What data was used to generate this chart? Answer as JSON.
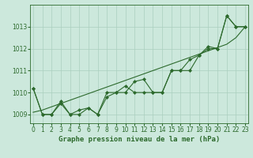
{
  "xlabel": "Graphe pression niveau de la mer (hPa)",
  "x": [
    0,
    1,
    2,
    3,
    4,
    5,
    6,
    7,
    8,
    9,
    10,
    11,
    12,
    13,
    14,
    15,
    16,
    17,
    18,
    19,
    20,
    21,
    22,
    23
  ],
  "line1": [
    1010.2,
    1009.0,
    1009.0,
    1009.6,
    1009.0,
    1009.0,
    1009.3,
    1009.0,
    1009.8,
    1010.0,
    1010.0,
    1010.5,
    1010.6,
    1010.0,
    1010.0,
    1011.0,
    1011.0,
    1011.0,
    1011.7,
    1012.0,
    1012.0,
    1013.5,
    1013.0,
    1013.0
  ],
  "line2": [
    1010.2,
    1009.0,
    1009.0,
    1009.5,
    1009.0,
    1009.2,
    1009.3,
    1009.0,
    1010.0,
    1010.0,
    1010.3,
    1010.0,
    1010.0,
    1010.0,
    1010.0,
    1011.0,
    1011.0,
    1011.5,
    1011.7,
    1012.1,
    1012.0,
    1013.5,
    1013.0,
    1013.0
  ],
  "trend": [
    1009.1,
    1009.2,
    1009.35,
    1009.5,
    1009.65,
    1009.8,
    1009.95,
    1010.1,
    1010.25,
    1010.4,
    1010.55,
    1010.7,
    1010.85,
    1011.0,
    1011.15,
    1011.3,
    1011.45,
    1011.6,
    1011.75,
    1011.9,
    1012.05,
    1012.2,
    1012.5,
    1013.0
  ],
  "line_color": "#2d6a2d",
  "bg_color": "#cce8dc",
  "grid_color": "#aacfbe",
  "ylim": [
    1008.6,
    1014.0
  ],
  "yticks": [
    1009,
    1010,
    1011,
    1012,
    1013
  ],
  "tick_fontsize": 5.5,
  "xlabel_fontsize": 6.5,
  "marker": "D",
  "marker_size": 2.0,
  "linewidth": 0.8,
  "trend_linewidth": 0.8
}
